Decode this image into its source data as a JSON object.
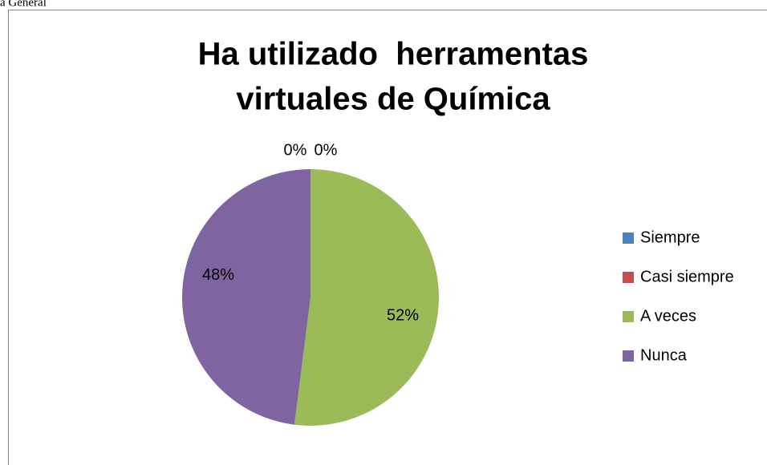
{
  "chart_data": {
    "type": "pie",
    "annotations": [
      "a General"
    ],
    "title": [
      "Ha utilizado  herramentas",
      "virtuales de Química"
    ],
    "series": [
      {
        "name": "Siempre",
        "color": "#4f81bd"
      },
      {
        "name": "Casi siempre",
        "color": "#c0504d"
      },
      {
        "name": "A veces",
        "color": "#9bbb59"
      },
      {
        "name": "Nunca",
        "color": "#8064a2"
      }
    ],
    "values": [
      0,
      0,
      52,
      48
    ],
    "value_labels": [
      "0%",
      "0%",
      "52%",
      "48%"
    ],
    "legend": "right"
  }
}
